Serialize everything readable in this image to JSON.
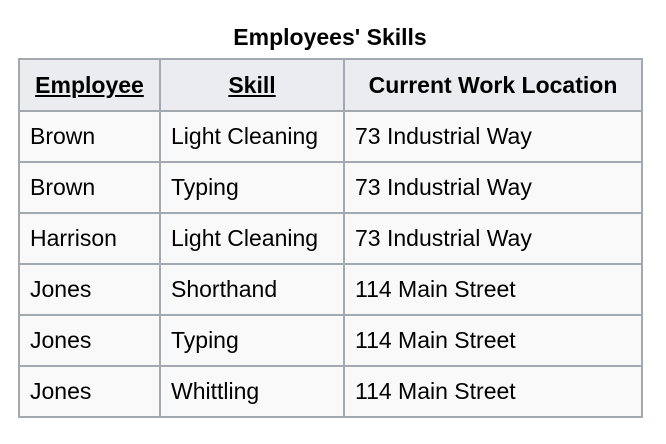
{
  "table": {
    "caption": "Employees' Skills",
    "headers": [
      "Employee",
      "Skill",
      "Current Work Location"
    ],
    "rows": [
      [
        "Brown",
        "Light Cleaning",
        "73 Industrial Way"
      ],
      [
        "Brown",
        "Typing",
        "73 Industrial Way"
      ],
      [
        "Harrison",
        "Light Cleaning",
        "73 Industrial Way"
      ],
      [
        "Jones",
        "Shorthand",
        "114 Main Street"
      ],
      [
        "Jones",
        "Typing",
        "114 Main Street"
      ],
      [
        "Jones",
        "Whittling",
        "114 Main Street"
      ]
    ]
  }
}
